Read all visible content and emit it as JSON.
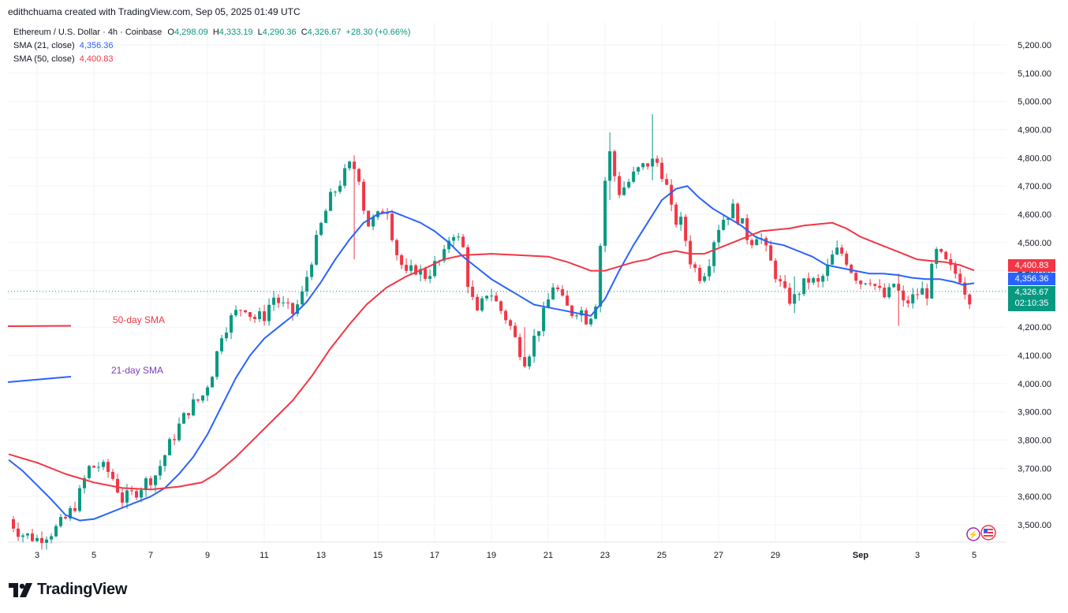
{
  "header": {
    "creator": "edithchuama created with TradingView.com, Sep 05, 2025 01:49 UTC"
  },
  "legend": {
    "symbol": "Ethereum / U.S. Dollar · 4h · Coinbase",
    "open_label": "O",
    "open": "4,298.09",
    "high_label": "H",
    "high": "4,333.19",
    "low_label": "L",
    "low": "4,290.36",
    "close_label": "C",
    "close": "4,326.67",
    "change": "+28.30 (+0.66%)",
    "sma21_label": "SMA (21, close)",
    "sma21_value": "4,356.36",
    "sma50_label": "SMA (50, close)",
    "sma50_value": "4,400.83"
  },
  "annotations": {
    "sma50_text": "50-day SMA",
    "sma21_text": "21-day SMA"
  },
  "price_tags": {
    "sma50": "4,400.83",
    "sma21": "4,356.36",
    "last": "4,326.67",
    "countdown": "02:10:35"
  },
  "footer": {
    "brand": "TradingView"
  },
  "colors": {
    "up": "#089981",
    "down": "#f23645",
    "sma21": "#2962ff",
    "sma50": "#f23645",
    "grid": "#f0f3fa",
    "axis_text": "#131722"
  },
  "chart_data": {
    "type": "candlestick",
    "title": "Ethereum / U.S. Dollar · 4h · Coinbase",
    "ylim": [
      3440,
      5240
    ],
    "y_ticks": [
      3500,
      3600,
      3700,
      3800,
      3900,
      4000,
      4100,
      4200,
      4300,
      4400,
      4500,
      4600,
      4700,
      4800,
      4900,
      5000,
      5100,
      5200
    ],
    "y_tick_labels": [
      "3,500.00",
      "3,600.00",
      "3,700.00",
      "3,800.00",
      "3,900.00",
      "4,000.00",
      "4,100.00",
      "4,200.00",
      "4,300.00",
      "4,400.00",
      "4,500.00",
      "4,600.00",
      "4,700.00",
      "4,800.00",
      "4,900.00",
      "5,000.00",
      "5,100.00",
      "5,200.00"
    ],
    "x_ticks": [
      {
        "day": 3,
        "label": "3"
      },
      {
        "day": 5,
        "label": "5"
      },
      {
        "day": 7,
        "label": "7"
      },
      {
        "day": 9,
        "label": "9"
      },
      {
        "day": 11,
        "label": "11"
      },
      {
        "day": 13,
        "label": "13"
      },
      {
        "day": 15,
        "label": "15"
      },
      {
        "day": 17,
        "label": "17"
      },
      {
        "day": 19,
        "label": "19"
      },
      {
        "day": 21,
        "label": "21"
      },
      {
        "day": 23,
        "label": "23"
      },
      {
        "day": 25,
        "label": "25"
      },
      {
        "day": 27,
        "label": "27"
      },
      {
        "day": 29,
        "label": "29"
      },
      {
        "day": 32,
        "label": "Sep"
      },
      {
        "day": 34,
        "label": "3"
      },
      {
        "day": 36,
        "label": "5"
      }
    ],
    "x_range": [
      2,
      37
    ],
    "candle_anchors": [
      [
        2.0,
        3520
      ],
      [
        2.4,
        3470
      ],
      [
        3.0,
        3450
      ],
      [
        3.6,
        3480
      ],
      [
        4.0,
        3520
      ],
      [
        4.4,
        3580
      ],
      [
        4.8,
        3700
      ],
      [
        5.2,
        3710
      ],
      [
        5.6,
        3680
      ],
      [
        6.0,
        3590
      ],
      [
        6.4,
        3610
      ],
      [
        6.8,
        3650
      ],
      [
        7.2,
        3680
      ],
      [
        7.6,
        3770
      ],
      [
        8.0,
        3850
      ],
      [
        8.4,
        3920
      ],
      [
        8.8,
        3950
      ],
      [
        9.2,
        4050
      ],
      [
        9.5,
        4180
      ],
      [
        9.9,
        4240
      ],
      [
        10.3,
        4280
      ],
      [
        10.6,
        4230
      ],
      [
        11.0,
        4240
      ],
      [
        11.3,
        4310
      ],
      [
        11.7,
        4270
      ],
      [
        12.0,
        4250
      ],
      [
        12.3,
        4300
      ],
      [
        12.6,
        4420
      ],
      [
        13.0,
        4560
      ],
      [
        13.3,
        4650
      ],
      [
        13.7,
        4720
      ],
      [
        14.0,
        4770
      ],
      [
        14.3,
        4760
      ],
      [
        14.6,
        4560
      ],
      [
        15.0,
        4590
      ],
      [
        15.3,
        4640
      ],
      [
        15.6,
        4480
      ],
      [
        16.0,
        4380
      ],
      [
        16.3,
        4410
      ],
      [
        16.7,
        4380
      ],
      [
        17.0,
        4420
      ],
      [
        17.3,
        4440
      ],
      [
        17.6,
        4550
      ],
      [
        18.0,
        4480
      ],
      [
        18.2,
        4340
      ],
      [
        18.5,
        4240
      ],
      [
        18.9,
        4340
      ],
      [
        19.2,
        4280
      ],
      [
        19.6,
        4220
      ],
      [
        19.9,
        4140
      ],
      [
        20.2,
        4080
      ],
      [
        20.5,
        4160
      ],
      [
        20.9,
        4260
      ],
      [
        21.2,
        4360
      ],
      [
        21.5,
        4290
      ],
      [
        21.8,
        4250
      ],
      [
        22.1,
        4270
      ],
      [
        22.4,
        4220
      ],
      [
        22.7,
        4300
      ],
      [
        22.9,
        4580
      ],
      [
        23.1,
        4850
      ],
      [
        23.3,
        4750
      ],
      [
        23.5,
        4680
      ],
      [
        23.8,
        4710
      ],
      [
        24.1,
        4750
      ],
      [
        24.5,
        4780
      ],
      [
        24.8,
        4790
      ],
      [
        25.1,
        4730
      ],
      [
        25.4,
        4580
      ],
      [
        25.7,
        4570
      ],
      [
        26.0,
        4440
      ],
      [
        26.3,
        4380
      ],
      [
        26.6,
        4410
      ],
      [
        26.9,
        4540
      ],
      [
        27.2,
        4590
      ],
      [
        27.5,
        4620
      ],
      [
        27.8,
        4570
      ],
      [
        28.1,
        4500
      ],
      [
        28.4,
        4540
      ],
      [
        28.7,
        4460
      ],
      [
        29.0,
        4390
      ],
      [
        29.3,
        4320
      ],
      [
        29.6,
        4290
      ],
      [
        29.9,
        4340
      ],
      [
        30.2,
        4370
      ],
      [
        30.5,
        4350
      ],
      [
        30.8,
        4400
      ],
      [
        31.1,
        4470
      ],
      [
        31.4,
        4460
      ],
      [
        31.7,
        4400
      ],
      [
        32.0,
        4360
      ],
      [
        32.3,
        4380
      ],
      [
        32.6,
        4330
      ],
      [
        32.9,
        4300
      ],
      [
        33.2,
        4360
      ],
      [
        33.5,
        4280
      ],
      [
        33.8,
        4300
      ],
      [
        34.1,
        4330
      ],
      [
        34.4,
        4320
      ],
      [
        34.6,
        4470
      ],
      [
        34.9,
        4440
      ],
      [
        35.2,
        4400
      ],
      [
        35.5,
        4380
      ],
      [
        35.8,
        4300
      ],
      [
        36.0,
        4327
      ]
    ],
    "candle_interval_days": 0.1667,
    "spikes": [
      {
        "day": 24.7,
        "high": 4955,
        "low": 4720
      },
      {
        "day": 23.2,
        "high": 4890,
        "low": 4650
      },
      {
        "day": 14.2,
        "high": 4790,
        "low": 4440
      },
      {
        "day": 33.4,
        "high": 4390,
        "low": 4205
      },
      {
        "day": 29.7,
        "high": 4380,
        "low": 4250
      },
      {
        "day": 20.1,
        "high": 4200,
        "low": 4055
      }
    ],
    "series": [
      {
        "name": "SMA (21, close)",
        "color": "#2962ff",
        "points": [
          [
            2.0,
            3730
          ],
          [
            2.5,
            3690
          ],
          [
            3.0,
            3640
          ],
          [
            3.5,
            3590
          ],
          [
            4.0,
            3535
          ],
          [
            4.5,
            3515
          ],
          [
            5.0,
            3520
          ],
          [
            5.5,
            3540
          ],
          [
            6.0,
            3560
          ],
          [
            6.5,
            3580
          ],
          [
            7.0,
            3600
          ],
          [
            7.5,
            3630
          ],
          [
            8.0,
            3680
          ],
          [
            8.5,
            3740
          ],
          [
            9.0,
            3820
          ],
          [
            9.5,
            3920
          ],
          [
            10.0,
            4020
          ],
          [
            10.5,
            4100
          ],
          [
            11.0,
            4160
          ],
          [
            11.5,
            4200
          ],
          [
            12.0,
            4240
          ],
          [
            12.5,
            4290
          ],
          [
            13.0,
            4360
          ],
          [
            13.5,
            4440
          ],
          [
            14.0,
            4510
          ],
          [
            14.5,
            4570
          ],
          [
            15.0,
            4600
          ],
          [
            15.5,
            4610
          ],
          [
            16.0,
            4590
          ],
          [
            16.5,
            4570
          ],
          [
            17.0,
            4540
          ],
          [
            17.5,
            4500
          ],
          [
            18.0,
            4450
          ],
          [
            18.5,
            4410
          ],
          [
            19.0,
            4370
          ],
          [
            19.5,
            4340
          ],
          [
            20.0,
            4310
          ],
          [
            20.5,
            4280
          ],
          [
            21.0,
            4270
          ],
          [
            21.5,
            4260
          ],
          [
            22.0,
            4250
          ],
          [
            22.5,
            4240
          ],
          [
            23.0,
            4300
          ],
          [
            23.5,
            4400
          ],
          [
            24.0,
            4490
          ],
          [
            24.5,
            4570
          ],
          [
            25.0,
            4650
          ],
          [
            25.5,
            4690
          ],
          [
            25.9,
            4700
          ],
          [
            26.3,
            4660
          ],
          [
            26.8,
            4620
          ],
          [
            27.3,
            4590
          ],
          [
            27.8,
            4560
          ],
          [
            28.3,
            4520
          ],
          [
            28.8,
            4500
          ],
          [
            29.3,
            4490
          ],
          [
            29.8,
            4470
          ],
          [
            30.3,
            4450
          ],
          [
            30.8,
            4420
          ],
          [
            31.3,
            4410
          ],
          [
            31.8,
            4400
          ],
          [
            32.3,
            4390
          ],
          [
            32.8,
            4390
          ],
          [
            33.3,
            4385
          ],
          [
            33.8,
            4375
          ],
          [
            34.3,
            4370
          ],
          [
            34.8,
            4370
          ],
          [
            35.3,
            4360
          ],
          [
            35.6,
            4350
          ],
          [
            36.0,
            4356
          ]
        ]
      },
      {
        "name": "SMA (50, close)",
        "color": "#f23645",
        "points": [
          [
            2.0,
            3750
          ],
          [
            3.0,
            3720
          ],
          [
            4.0,
            3680
          ],
          [
            5.0,
            3650
          ],
          [
            6.0,
            3630
          ],
          [
            7.0,
            3625
          ],
          [
            8.0,
            3635
          ],
          [
            8.8,
            3650
          ],
          [
            9.3,
            3680
          ],
          [
            10.0,
            3740
          ],
          [
            10.7,
            3810
          ],
          [
            11.3,
            3870
          ],
          [
            12.0,
            3940
          ],
          [
            12.7,
            4030
          ],
          [
            13.3,
            4120
          ],
          [
            14.0,
            4210
          ],
          [
            14.6,
            4280
          ],
          [
            15.3,
            4340
          ],
          [
            16.0,
            4380
          ],
          [
            16.7,
            4410
          ],
          [
            17.3,
            4440
          ],
          [
            18.0,
            4455
          ],
          [
            19.0,
            4460
          ],
          [
            20.0,
            4455
          ],
          [
            21.0,
            4450
          ],
          [
            21.7,
            4430
          ],
          [
            22.5,
            4400
          ],
          [
            23.0,
            4400
          ],
          [
            24.0,
            4430
          ],
          [
            24.5,
            4440
          ],
          [
            25.0,
            4460
          ],
          [
            25.5,
            4470
          ],
          [
            26.0,
            4460
          ],
          [
            26.5,
            4460
          ],
          [
            27.0,
            4480
          ],
          [
            27.5,
            4500
          ],
          [
            28.0,
            4520
          ],
          [
            28.5,
            4540
          ],
          [
            29.0,
            4545
          ],
          [
            29.5,
            4550
          ],
          [
            30.0,
            4560
          ],
          [
            30.5,
            4565
          ],
          [
            31.0,
            4570
          ],
          [
            31.5,
            4550
          ],
          [
            32.0,
            4520
          ],
          [
            32.5,
            4500
          ],
          [
            33.0,
            4480
          ],
          [
            33.5,
            4460
          ],
          [
            34.0,
            4440
          ],
          [
            34.5,
            4435
          ],
          [
            35.0,
            4430
          ],
          [
            35.5,
            4420
          ],
          [
            36.0,
            4401
          ]
        ]
      }
    ],
    "last_price": 4326.67
  }
}
